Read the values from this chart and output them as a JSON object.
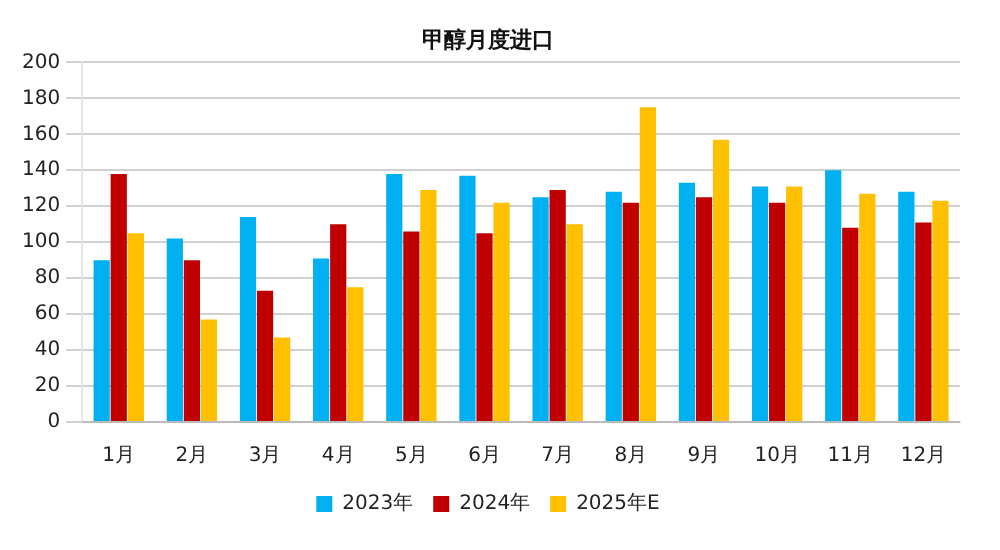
{
  "chart_data": {
    "type": "bar",
    "title": "甲醇月度进口",
    "categories": [
      "1月",
      "2月",
      "3月",
      "4月",
      "5月",
      "6月",
      "7月",
      "8月",
      "9月",
      "10月",
      "11月",
      "12月"
    ],
    "series": [
      {
        "name": "2023年",
        "color": "#00b0f0",
        "values": [
          90,
          102,
          114,
          91,
          138,
          137,
          125,
          128,
          133,
          131,
          140,
          128
        ]
      },
      {
        "name": "2024年",
        "color": "#c00000",
        "values": [
          138,
          90,
          73,
          110,
          106,
          105,
          129,
          122,
          125,
          122,
          108,
          111
        ]
      },
      {
        "name": "2025年E",
        "color": "#ffc000",
        "values": [
          105,
          57,
          47,
          75,
          129,
          122,
          110,
          175,
          157,
          131,
          127,
          123
        ]
      }
    ],
    "ylim": [
      0,
      200
    ],
    "yticks": [
      0,
      20,
      40,
      60,
      80,
      100,
      120,
      140,
      160,
      180,
      200
    ],
    "grid": "y",
    "legend": "bottom"
  }
}
